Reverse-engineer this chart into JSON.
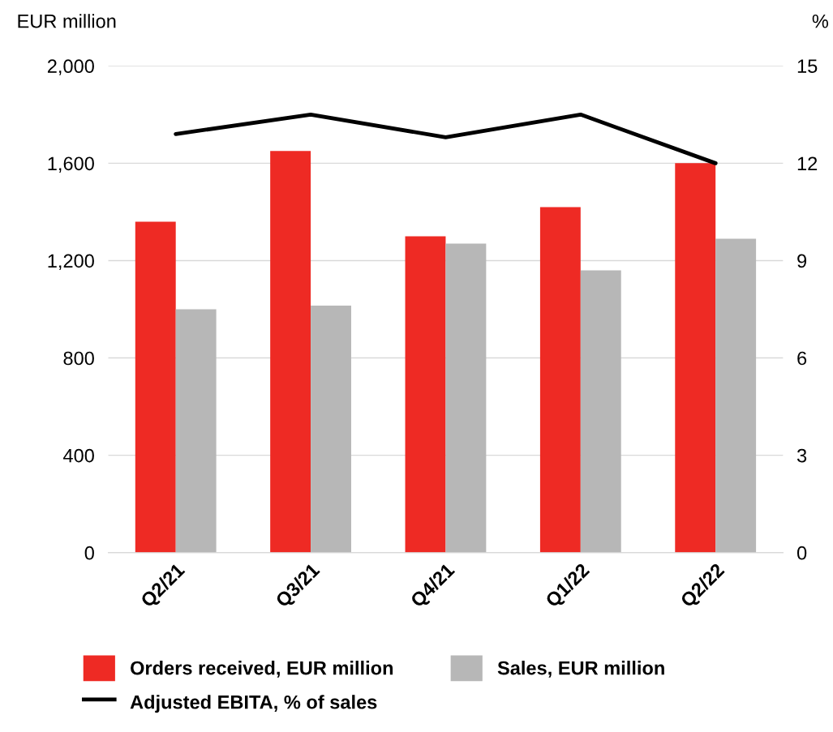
{
  "chart_data": {
    "type": "bar",
    "xlabel": null,
    "ylabel": "EUR million",
    "y2label": "%",
    "categories": [
      "Q2/21",
      "Q3/21",
      "Q4/21",
      "Q1/22",
      "Q2/22"
    ],
    "series": [
      {
        "name": "Orders received, EUR million",
        "color": "#ee2a24",
        "values": [
          1360,
          1650,
          1300,
          1420,
          1600
        ]
      },
      {
        "name": "Sales, EUR million",
        "color": "#b7b7b7",
        "values": [
          1000,
          1015,
          1270,
          1160,
          1290
        ]
      },
      {
        "name": "Adjusted EBITA, % of sales",
        "type": "line",
        "axis": "y2",
        "color": "#000000",
        "values": [
          12.9,
          13.5,
          12.8,
          13.5,
          12.0
        ]
      }
    ],
    "ylim": [
      0,
      2000
    ],
    "yticks": [
      0,
      {
        "value": 400,
        "label": "400"
      },
      {
        "value": 800,
        "label": "800"
      },
      {
        "value": 1200,
        "label": "1,200"
      },
      {
        "value": 1600,
        "label": "1,600"
      },
      {
        "value": 2000,
        "label": "2,000"
      }
    ],
    "y2lim": [
      0,
      15
    ],
    "y2ticks": [
      0,
      3,
      6,
      9,
      12,
      15
    ],
    "grid": "y",
    "legend": "bottom",
    "marker": "none",
    "line_style": "solid"
  }
}
